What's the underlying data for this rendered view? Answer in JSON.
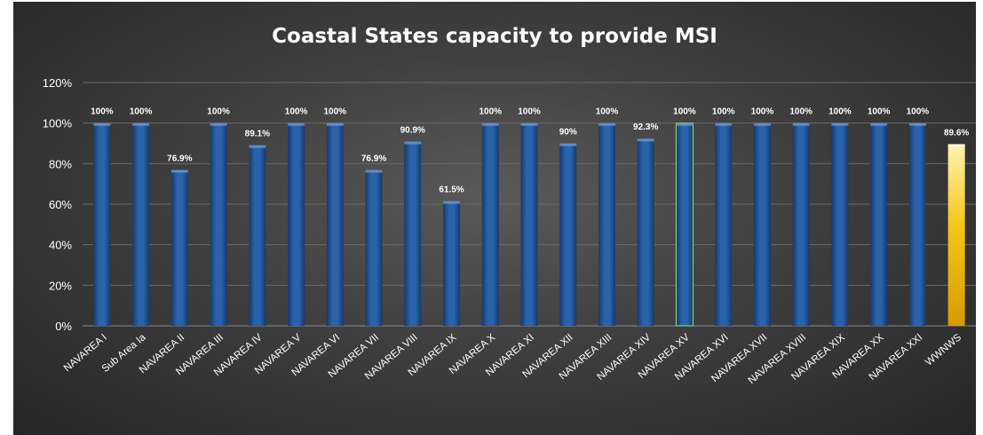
{
  "chart_data": {
    "type": "bar",
    "title": "Coastal States capacity to provide MSI",
    "xlabel": "",
    "ylabel": "",
    "ylim": [
      0,
      120
    ],
    "yticks": [
      "0%",
      "20%",
      "40%",
      "60%",
      "80%",
      "100%",
      "120%"
    ],
    "grid": true,
    "legend": "none",
    "categories": [
      "NAVAREA I",
      "Sub Area Ia",
      "NAVAREA II",
      "NAVAREA III",
      "NAVAREA IV",
      "NAVAREA V",
      "NAVAREA VI",
      "NAVAREA VII",
      "NAVAREA VIII",
      "NAVAREA IX",
      "NAVAREA X",
      "NAVAREA XI",
      "NAVAREA XII",
      "NAVAREA XIII",
      "NAVAREA XIV",
      "NAVAREA XV",
      "NAVAREA XVI",
      "NAVAREA XVII",
      "NAVAREA XVIII",
      "NAVAREA XIX",
      "NAVAREA XX",
      "NAVAREA XXI",
      "WWNWS"
    ],
    "values": [
      100,
      100,
      76.9,
      100,
      89.1,
      100,
      100,
      76.9,
      90.9,
      61.5,
      100,
      100,
      90,
      100,
      92.3,
      100,
      100,
      100,
      100,
      100,
      100,
      100,
      89.6
    ],
    "data_labels": [
      "100%",
      "100%",
      "76.9%",
      "100%",
      "89.1%",
      "100%",
      "100%",
      "76.9%",
      "90.9%",
      "61.5%",
      "100%",
      "100%",
      "90%",
      "100%",
      "92.3%",
      "100%",
      "100%",
      "100%",
      "100%",
      "100%",
      "100%",
      "100%",
      "89.6%"
    ],
    "colors": {
      "bar": "#1f4e8c",
      "highlight_bar": "#f2b705",
      "highlight_index": 22,
      "outlined_index": 15,
      "outline": "#7fd36b"
    }
  }
}
